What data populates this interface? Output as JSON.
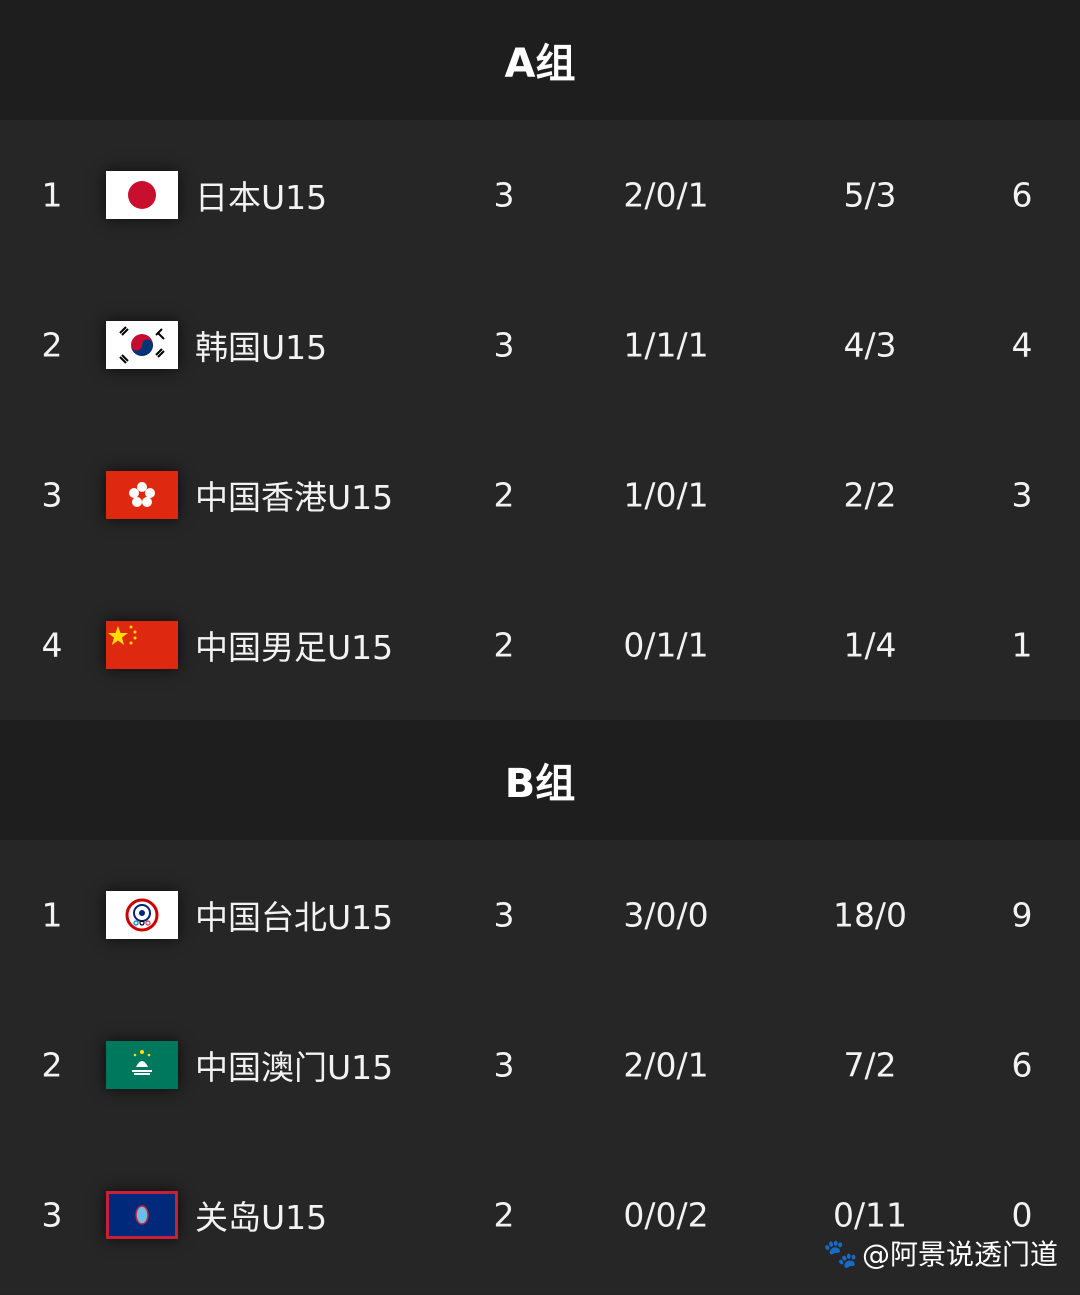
{
  "groups": [
    {
      "title": "A组",
      "rows": [
        {
          "rank": "1",
          "flag": "japan-flag",
          "team": "日本U15",
          "played": "3",
          "wdl": "2/0/1",
          "goals": "5/3",
          "points": "6"
        },
        {
          "rank": "2",
          "flag": "korea-flag",
          "team": "韩国U15",
          "played": "3",
          "wdl": "1/1/1",
          "goals": "4/3",
          "points": "4"
        },
        {
          "rank": "3",
          "flag": "hongkong-flag",
          "team": "中国香港U15",
          "played": "2",
          "wdl": "1/0/1",
          "goals": "2/2",
          "points": "3"
        },
        {
          "rank": "4",
          "flag": "china-flag",
          "team": "中国男足U15",
          "played": "2",
          "wdl": "0/1/1",
          "goals": "1/4",
          "points": "1"
        }
      ]
    },
    {
      "title": "B组",
      "rows": [
        {
          "rank": "1",
          "flag": "chinese-taipei-flag",
          "team": "中国台北U15",
          "played": "3",
          "wdl": "3/0/0",
          "goals": "18/0",
          "points": "9"
        },
        {
          "rank": "2",
          "flag": "macau-flag",
          "team": "中国澳门U15",
          "played": "3",
          "wdl": "2/0/1",
          "goals": "7/2",
          "points": "6"
        },
        {
          "rank": "3",
          "flag": "guam-flag",
          "team": "关岛U15",
          "played": "2",
          "wdl": "0/0/2",
          "goals": "0/11",
          "points": "0"
        }
      ]
    }
  ],
  "watermark": "@阿景说透门道"
}
